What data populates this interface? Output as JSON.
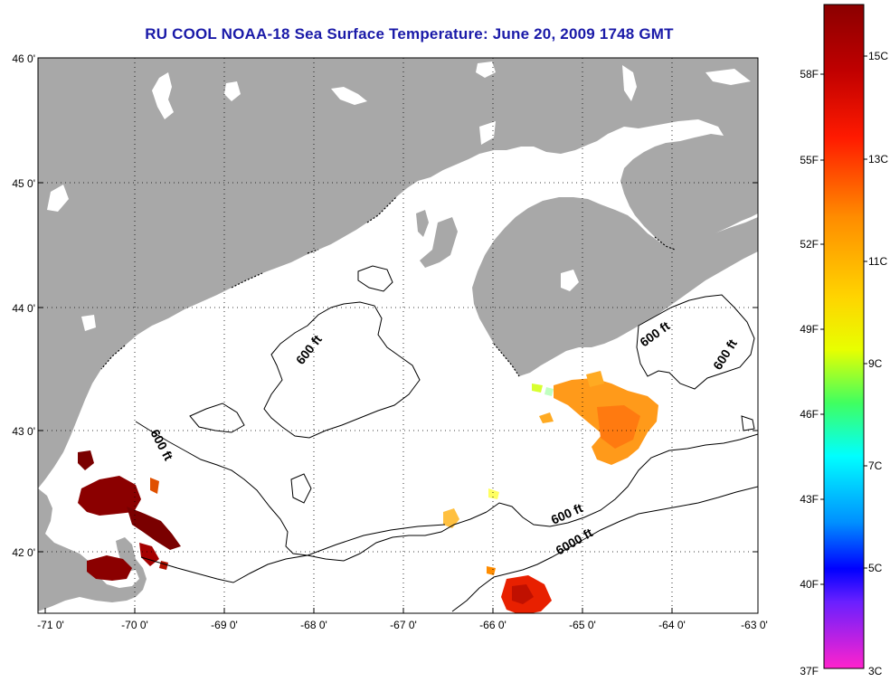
{
  "title": "RU COOL  NOAA-18  Sea Surface Temperature:  June 20, 2009 1748 GMT",
  "map": {
    "lat_labels": [
      "46 0'",
      "45 0'",
      "44 0'",
      "43 0'",
      "42 0'"
    ],
    "lon_labels": [
      "-71 0'",
      "-70 0'",
      "-69 0'",
      "-68 0'",
      "-67 0'",
      "-66 0'",
      "-65 0'",
      "-64 0'",
      "-63 0'"
    ],
    "contour_labels": [
      "600 ft",
      "600 ft",
      "600 ft",
      "600 ft",
      "6000 ft"
    ],
    "land_color": "#a8a8a8",
    "water_color": "#ffffff",
    "grid": "dotted"
  },
  "colorbar": {
    "f_labels": [
      "58F",
      "55F",
      "52F",
      "49F",
      "46F",
      "43F",
      "40F",
      "37F"
    ],
    "c_labels": [
      "15C",
      "13C",
      "11C",
      "9C",
      "7C",
      "5C",
      "3C"
    ],
    "colors": [
      "#8b0000",
      "#ff0000",
      "#ff8c00",
      "#ffff00",
      "#00ff80",
      "#00ffff",
      "#0080ff",
      "#0000ff",
      "#ff22cc"
    ]
  }
}
